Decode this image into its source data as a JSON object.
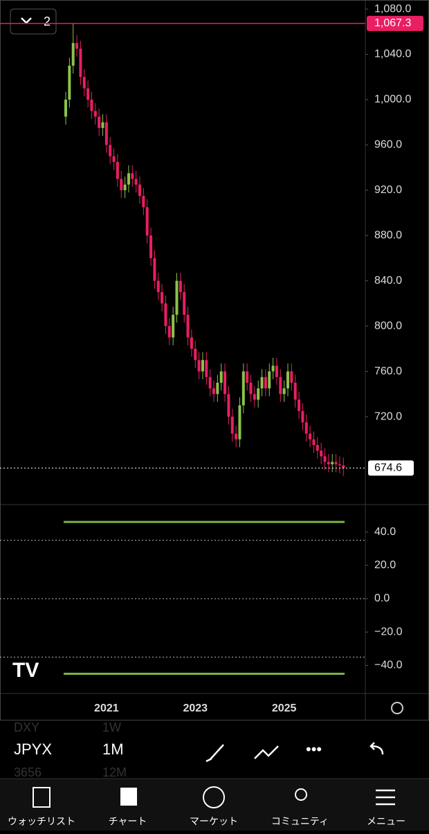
{
  "chart_data": {
    "type": "candlestick",
    "interval_button": "2",
    "categories": [
      null,
      null,
      null,
      null,
      null,
      null,
      null,
      null,
      null,
      null,
      null,
      "2021",
      null,
      null,
      null,
      null,
      null,
      null,
      null,
      null,
      null,
      null,
      null,
      null,
      null,
      null,
      null,
      null,
      null,
      null,
      null,
      null,
      null,
      null,
      null,
      "2023",
      null,
      null,
      null,
      null,
      null,
      null,
      null,
      null,
      null,
      null,
      null,
      null,
      null,
      null,
      null,
      null,
      null,
      null,
      null,
      null,
      null,
      null,
      null,
      "2025",
      null,
      null,
      null,
      null,
      null,
      null,
      null,
      null,
      null,
      null,
      null,
      null,
      null,
      null,
      null,
      null
    ],
    "open": [
      985,
      1000,
      1030,
      1050,
      1045,
      1020,
      1010,
      1000,
      990,
      985,
      975,
      980,
      960,
      950,
      945,
      930,
      920,
      925,
      935,
      930,
      925,
      915,
      905,
      880,
      860,
      840,
      830,
      820,
      800,
      790,
      810,
      840,
      830,
      810,
      790,
      780,
      770,
      760,
      770,
      755,
      745,
      740,
      750,
      760,
      740,
      720,
      705,
      700,
      730,
      760,
      750,
      740,
      735,
      745,
      755,
      745,
      760,
      765,
      755,
      740,
      745,
      760,
      750,
      735,
      725,
      715,
      705,
      700,
      695,
      690,
      685,
      680,
      678,
      680,
      678,
      677
    ],
    "high": [
      1007,
      1037,
      1067.3,
      1057,
      1052,
      1027,
      1017,
      1007,
      997,
      992,
      987,
      987,
      967,
      957,
      952,
      937,
      932,
      942,
      942,
      937,
      932,
      922,
      912,
      887,
      867,
      847,
      837,
      827,
      807,
      817,
      847,
      847,
      837,
      817,
      797,
      787,
      777,
      777,
      777,
      762,
      752,
      757,
      767,
      767,
      747,
      727,
      712,
      737,
      767,
      767,
      757,
      747,
      752,
      762,
      762,
      767,
      772,
      772,
      762,
      752,
      767,
      767,
      757,
      742,
      732,
      722,
      712,
      707,
      702,
      697,
      692,
      687,
      687,
      687,
      685,
      684
    ],
    "low": [
      978,
      993,
      1023,
      1038,
      1013,
      1003,
      993,
      983,
      978,
      968,
      968,
      953,
      943,
      938,
      923,
      913,
      913,
      918,
      923,
      918,
      908,
      898,
      873,
      853,
      833,
      823,
      813,
      793,
      783,
      783,
      803,
      823,
      803,
      783,
      773,
      763,
      753,
      753,
      748,
      738,
      733,
      733,
      743,
      733,
      713,
      698,
      693,
      693,
      723,
      743,
      733,
      728,
      728,
      738,
      738,
      738,
      753,
      748,
      733,
      733,
      738,
      743,
      728,
      718,
      708,
      698,
      693,
      688,
      683,
      678,
      673,
      671,
      671,
      671,
      670,
      667.6
    ],
    "close": [
      1000,
      1030,
      1050,
      1045,
      1020,
      1010,
      1000,
      990,
      985,
      975,
      980,
      960,
      950,
      945,
      930,
      920,
      925,
      935,
      930,
      925,
      915,
      905,
      880,
      860,
      840,
      830,
      820,
      800,
      790,
      810,
      840,
      830,
      810,
      790,
      780,
      770,
      760,
      770,
      755,
      745,
      740,
      750,
      760,
      740,
      720,
      705,
      700,
      730,
      760,
      750,
      740,
      735,
      745,
      755,
      745,
      760,
      765,
      755,
      740,
      745,
      760,
      750,
      735,
      725,
      715,
      705,
      700,
      695,
      690,
      685,
      680,
      678,
      680,
      678,
      677,
      674.6
    ],
    "up_color": "#8bc34a",
    "down_color": "#e91e63",
    "ylim": [
      643,
      1088
    ],
    "yticks": [
      {
        "value": 1080,
        "label": "1,080.0"
      },
      {
        "value": 1040,
        "label": "1,040.0"
      },
      {
        "value": 1000,
        "label": "1,000.0"
      },
      {
        "value": 960,
        "label": "960.0"
      },
      {
        "value": 920,
        "label": "920.0"
      },
      {
        "value": 880,
        "label": "880.0"
      },
      {
        "value": 840,
        "label": "840.0"
      },
      {
        "value": 800,
        "label": "800.0"
      },
      {
        "value": 760,
        "label": "760.0"
      },
      {
        "value": 720,
        "label": "720.0"
      }
    ],
    "high_price": {
      "value": 1067.3,
      "label": "1,067.3"
    },
    "last_price": 674.6,
    "indicator": {
      "ylim": [
        -56,
        56
      ],
      "yticks": [
        {
          "value": 40,
          "label": "40.0"
        },
        {
          "value": 20,
          "label": "20.0"
        },
        {
          "value": 0,
          "label": "0.0"
        },
        {
          "value": -20,
          "label": "−20.0"
        },
        {
          "value": -40,
          "label": "−40.0"
        }
      ],
      "levels": [
        46,
        -45
      ],
      "dotted_levels": [
        35,
        0,
        -35
      ],
      "level_color": "#7cb342"
    }
  },
  "toolbar": {
    "prev_symbol": "DXY",
    "prev_interval": "1W",
    "symbol": "JPYX",
    "interval": "1M",
    "next_symbol": "3656",
    "next_interval": "12M"
  },
  "nav": [
    "ウォッチリスト",
    "チャート",
    "マーケット",
    "コミュニティ",
    "メニュー"
  ]
}
